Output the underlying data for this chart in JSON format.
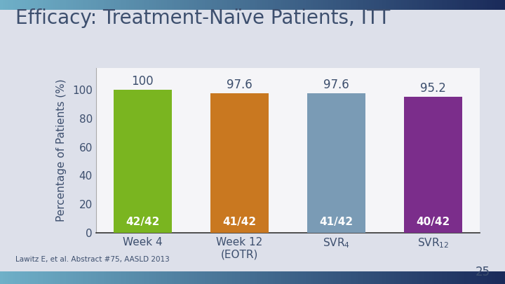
{
  "title": "Efficacy: Treatment-Naïve Patients, ITT",
  "ylabel": "Percentage of Patients (%)",
  "categories": [
    "Week 4",
    "Week 12\n(EOTR)",
    "SVR$_4$",
    "SVR$_{12}$"
  ],
  "values": [
    100,
    97.6,
    97.6,
    95.2
  ],
  "bar_colors": [
    "#7ab520",
    "#c97820",
    "#7a9bb5",
    "#7b2d8b"
  ],
  "bar_labels": [
    "42/42",
    "41/42",
    "41/42",
    "40/42"
  ],
  "value_labels": [
    "100",
    "97.6",
    "97.6",
    "95.2"
  ],
  "ylim": [
    0,
    115
  ],
  "yticks": [
    0,
    20,
    40,
    60,
    80,
    100
  ],
  "background_color": "#dde0ea",
  "plot_bg_color": "#f5f5f8",
  "title_color": "#3d4f6e",
  "axis_color": "#3d4f6e",
  "tick_color": "#3d4f6e",
  "footnote": "Lawitz E, et al. Abstract #75, AASLD 2013",
  "page_number": "25",
  "stripe_color_left": "#6fb0c8",
  "stripe_color_right": "#1a2a5a",
  "title_fontsize": 20,
  "label_fontsize": 11,
  "bar_label_fontsize": 11,
  "value_label_fontsize": 12,
  "ylabel_fontsize": 11
}
